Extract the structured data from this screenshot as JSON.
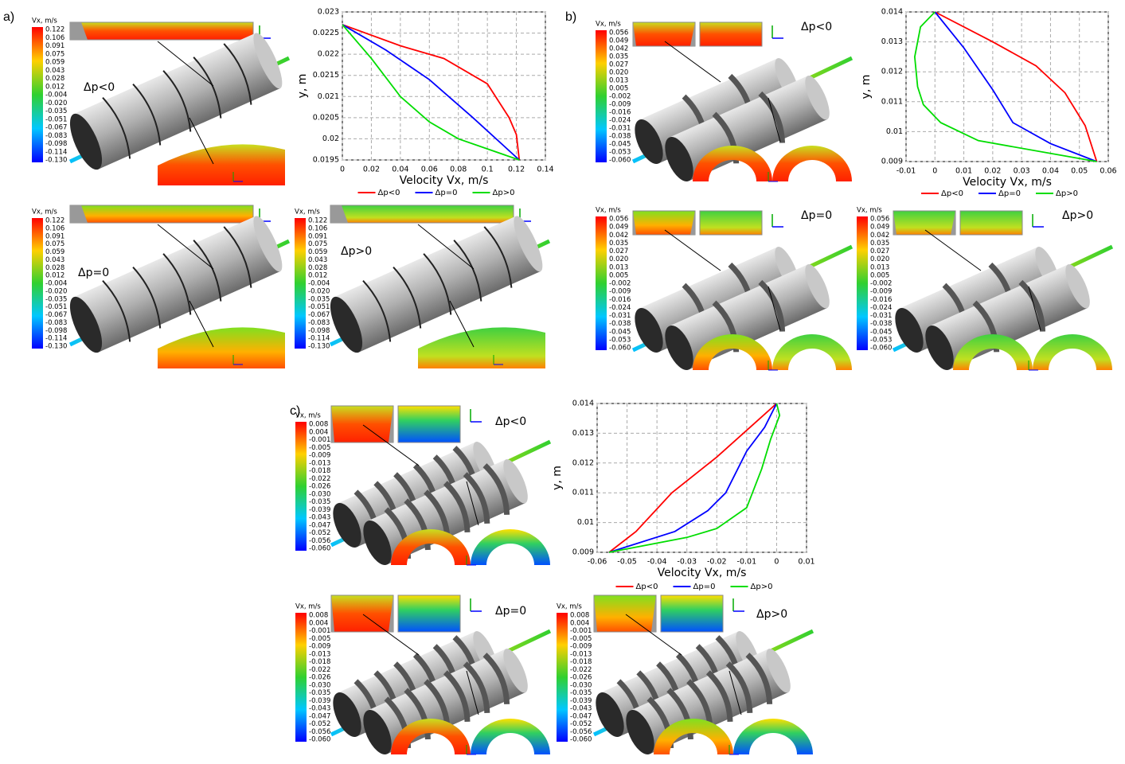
{
  "labels": [
    "a)",
    "b)",
    "c)"
  ],
  "panels": [
    {
      "colorbar_title": "Vx, m/s",
      "colorbar_ticks": [
        "0.122",
        "0.106",
        "0.091",
        "0.075",
        "0.059",
        "0.043",
        "0.028",
        "0.012",
        "-0.004",
        "-0.020",
        "-0.035",
        "-0.051",
        "-0.067",
        "-0.083",
        "-0.098",
        "-0.114",
        "-0.130"
      ],
      "pressure": "Δp<0"
    },
    {
      "colorbar_title": "Vx, m/s",
      "colorbar_ticks": [
        "0.122",
        "0.106",
        "0.091",
        "0.075",
        "0.059",
        "0.043",
        "0.028",
        "0.012",
        "-0.004",
        "-0.020",
        "-0.035",
        "-0.051",
        "-0.067",
        "-0.083",
        "-0.098",
        "-0.114",
        "-0.130"
      ],
      "pressure": "Δp=0"
    },
    {
      "colorbar_title": "Vx, m/s",
      "colorbar_ticks": [
        "0.122",
        "0.106",
        "0.091",
        "0.075",
        "0.059",
        "0.043",
        "0.028",
        "0.012",
        "-0.004",
        "-0.020",
        "-0.035",
        "-0.051",
        "-0.067",
        "-0.083",
        "-0.098",
        "-0.114",
        "-0.130"
      ],
      "pressure": "Δp>0"
    },
    {
      "colorbar_title": "Vx, m/s",
      "colorbar_ticks": [
        "0.056",
        "0.049",
        "0.042",
        "0.035",
        "0.027",
        "0.020",
        "0.013",
        "0.005",
        "-0.002",
        "-0.009",
        "-0.016",
        "-0.024",
        "-0.031",
        "-0.038",
        "-0.045",
        "-0.053",
        "-0.060"
      ],
      "pressure": "Δp<0"
    },
    {
      "colorbar_title": "Vx, m/s",
      "colorbar_ticks": [
        "0.056",
        "0.049",
        "0.042",
        "0.035",
        "0.027",
        "0.020",
        "0.013",
        "0.005",
        "-0.002",
        "-0.009",
        "-0.016",
        "-0.024",
        "-0.031",
        "-0.038",
        "-0.045",
        "-0.053",
        "-0.060"
      ],
      "pressure": "Δp=0"
    },
    {
      "colorbar_title": "Vx, m/s",
      "colorbar_ticks": [
        "0.056",
        "0.049",
        "0.042",
        "0.035",
        "0.027",
        "0.020",
        "0.013",
        "0.005",
        "-0.002",
        "-0.009",
        "-0.016",
        "-0.024",
        "-0.031",
        "-0.038",
        "-0.045",
        "-0.053",
        "-0.060"
      ],
      "pressure": "Δp>0"
    },
    {
      "colorbar_title": "Vx, m/s",
      "colorbar_ticks": [
        "0.008",
        "0.004",
        "-0.001",
        "-0.005",
        "-0.009",
        "-0.013",
        "-0.018",
        "-0.022",
        "-0.026",
        "-0.030",
        "-0.035",
        "-0.039",
        "-0.043",
        "-0.047",
        "-0.052",
        "-0.056",
        "-0.060"
      ],
      "pressure": "Δp<0"
    },
    {
      "colorbar_title": "Vx, m/s",
      "colorbar_ticks": [
        "0.008",
        "0.004",
        "-0.001",
        "-0.005",
        "-0.009",
        "-0.013",
        "-0.018",
        "-0.022",
        "-0.026",
        "-0.030",
        "-0.035",
        "-0.039",
        "-0.043",
        "-0.047",
        "-0.052",
        "-0.056",
        "-0.060"
      ],
      "pressure": "Δp=0"
    },
    {
      "colorbar_title": "Vx, m/s",
      "colorbar_ticks": [
        "0.008",
        "0.004",
        "-0.001",
        "-0.005",
        "-0.009",
        "-0.013",
        "-0.018",
        "-0.022",
        "-0.026",
        "-0.030",
        "-0.035",
        "-0.039",
        "-0.043",
        "-0.047",
        "-0.052",
        "-0.056",
        "-0.060"
      ],
      "pressure": "Δp>0"
    }
  ],
  "chart_data": [
    {
      "type": "line",
      "xlabel": "Velocity Vx, m/s",
      "ylabel": "y, m",
      "xlim": [
        0,
        0.14
      ],
      "xticks": [
        0,
        0.02,
        0.04,
        0.06,
        0.08,
        0.1,
        0.12,
        0.14
      ],
      "ylim": [
        0.0195,
        0.023
      ],
      "yticks": [
        0.0195,
        0.02,
        0.0205,
        0.021,
        0.0215,
        0.022,
        0.0225,
        0.023
      ],
      "grid": true,
      "series": [
        {
          "name": "Δp<0",
          "color": "#ff0000",
          "x": [
            0,
            0.04,
            0.07,
            0.1,
            0.115,
            0.12,
            0.122
          ],
          "values": [
            0.0227,
            0.0222,
            0.0219,
            0.0213,
            0.0205,
            0.0201,
            0.0195
          ]
        },
        {
          "name": "Δp=0",
          "color": "#0000ff",
          "x": [
            0,
            0.03,
            0.06,
            0.09,
            0.122
          ],
          "values": [
            0.0227,
            0.0221,
            0.0214,
            0.0205,
            0.0195
          ]
        },
        {
          "name": "Δp>0",
          "color": "#00dd00",
          "x": [
            0,
            0.02,
            0.04,
            0.06,
            0.08,
            0.122
          ],
          "values": [
            0.0227,
            0.0219,
            0.021,
            0.0204,
            0.02,
            0.0195
          ]
        }
      ]
    },
    {
      "type": "line",
      "xlabel": "Velocity Vx, m/s",
      "ylabel": "y, m",
      "xlim": [
        -0.01,
        0.06
      ],
      "xticks": [
        -0.01,
        0,
        0.01,
        0.02,
        0.03,
        0.04,
        0.05,
        0.06
      ],
      "ylim": [
        0.009,
        0.014
      ],
      "yticks": [
        0.009,
        0.01,
        0.011,
        0.012,
        0.013,
        0.014
      ],
      "grid": true,
      "series": [
        {
          "name": "Δp<0",
          "color": "#ff0000",
          "x": [
            0,
            0.02,
            0.035,
            0.045,
            0.052,
            0.056
          ],
          "values": [
            0.014,
            0.013,
            0.0122,
            0.0113,
            0.0102,
            0.009
          ]
        },
        {
          "name": "Δp=0",
          "color": "#0000ff",
          "x": [
            0,
            0.01,
            0.02,
            0.027,
            0.04,
            0.056
          ],
          "values": [
            0.014,
            0.0128,
            0.0114,
            0.0103,
            0.0096,
            0.009
          ]
        },
        {
          "name": "Δp>0",
          "color": "#00dd00",
          "x": [
            0,
            -0.005,
            -0.007,
            -0.006,
            -0.004,
            0.002,
            0.015,
            0.056
          ],
          "values": [
            0.014,
            0.0135,
            0.0125,
            0.0115,
            0.0109,
            0.0103,
            0.0097,
            0.009
          ]
        }
      ]
    },
    {
      "type": "line",
      "xlabel": "Velocity Vx, m/s",
      "ylabel": "y, m",
      "xlim": [
        -0.06,
        0.01
      ],
      "xticks": [
        -0.06,
        -0.05,
        -0.04,
        -0.03,
        -0.02,
        -0.01,
        0,
        0.01
      ],
      "ylim": [
        0.009,
        0.014
      ],
      "yticks": [
        0.009,
        0.01,
        0.011,
        0.012,
        0.013,
        0.014
      ],
      "grid": true,
      "series": [
        {
          "name": "Δp<0",
          "color": "#ff0000",
          "x": [
            -0.056,
            -0.047,
            -0.035,
            -0.02,
            -0.01,
            0
          ],
          "values": [
            0.009,
            0.0097,
            0.011,
            0.0122,
            0.0131,
            0.014
          ]
        },
        {
          "name": "Δp=0",
          "color": "#0000ff",
          "x": [
            -0.056,
            -0.034,
            -0.023,
            -0.017,
            -0.01,
            -0.004,
            0
          ],
          "values": [
            0.009,
            0.0097,
            0.0104,
            0.011,
            0.0124,
            0.0132,
            0.014
          ]
        },
        {
          "name": "Δp>0",
          "color": "#00dd00",
          "x": [
            -0.056,
            -0.03,
            -0.02,
            -0.01,
            -0.005,
            -0.002,
            0.001,
            0
          ],
          "values": [
            0.009,
            0.0095,
            0.0098,
            0.0105,
            0.0118,
            0.0128,
            0.0136,
            0.014
          ]
        }
      ]
    }
  ]
}
